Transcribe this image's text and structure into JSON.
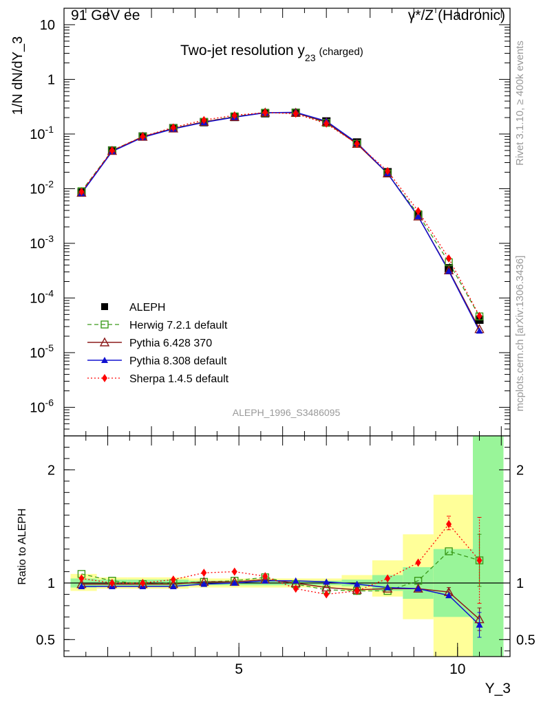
{
  "header": {
    "left": "91 GeV ee",
    "right": "γ*/Z (Hadronic)"
  },
  "side": {
    "top": "Rivet 3.1.10, ≥ 400k events",
    "bottom": "mcplots.cern.ch [arXiv:1306.3436]"
  },
  "colors": {
    "data": "#000000",
    "herwig": "#3a9a1a",
    "pythia6": "#8b1a1a",
    "pythia8": "#1010d0",
    "sherpa": "#ff0000",
    "band_inner": "#99f599",
    "band_outer": "#ffff99"
  },
  "chart_data": [
    {
      "type": "line",
      "title": "Two-jet resolution y",
      "title_sub": "23",
      "title_suffix": "(charged)",
      "ylabel": "1/N dN/dY_3",
      "yscale": "log",
      "ylim": [
        3e-07,
        20
      ],
      "xlim": [
        1,
        11.2
      ],
      "analysis": "ALEPH_1996_S3486095",
      "y_ticks": [
        {
          "base": "10",
          "exp": "-6",
          "value": 1e-06
        },
        {
          "base": "10",
          "exp": "-5",
          "value": 1e-05
        },
        {
          "base": "10",
          "exp": "-4",
          "value": 0.0001
        },
        {
          "base": "10",
          "exp": "-3",
          "value": 0.001
        },
        {
          "base": "10",
          "exp": "-2",
          "value": 0.01
        },
        {
          "base": "10",
          "exp": "-1",
          "value": 0.1
        },
        {
          "base": "1",
          "exp": "",
          "value": 1
        },
        {
          "base": "10",
          "exp": "",
          "value": 10
        }
      ],
      "x": [
        1.4,
        2.1,
        2.8,
        3.5,
        4.2,
        4.9,
        5.6,
        6.3,
        7.0,
        7.7,
        8.4,
        9.1,
        9.8,
        10.5
      ],
      "series": [
        {
          "name": "ALEPH",
          "key": "data",
          "values": [
            0.0085,
            0.05,
            0.09,
            0.128,
            0.165,
            0.205,
            0.24,
            0.245,
            0.17,
            0.07,
            0.02,
            0.0033,
            0.00035,
            4e-05
          ]
        },
        {
          "name": "Herwig 7.2.1 default",
          "key": "herwig",
          "values": [
            0.009,
            0.05,
            0.09,
            0.128,
            0.167,
            0.21,
            0.245,
            0.245,
            0.16,
            0.066,
            0.019,
            0.0034,
            0.00045,
            4.6e-05
          ]
        },
        {
          "name": "Pythia 6.428 370",
          "key": "pythia6",
          "values": [
            0.0084,
            0.049,
            0.089,
            0.126,
            0.167,
            0.205,
            0.247,
            0.245,
            0.165,
            0.066,
            0.019,
            0.0031,
            0.00032,
            2.7e-05
          ]
        },
        {
          "name": "Pythia 8.308 default",
          "key": "pythia8",
          "values": [
            0.0082,
            0.048,
            0.087,
            0.124,
            0.163,
            0.203,
            0.245,
            0.249,
            0.172,
            0.069,
            0.019,
            0.0031,
            0.00031,
            2.5e-05
          ]
        },
        {
          "name": "Sherpa 1.4.5 default",
          "key": "sherpa",
          "values": [
            0.0088,
            0.05,
            0.09,
            0.132,
            0.18,
            0.22,
            0.247,
            0.235,
            0.155,
            0.066,
            0.021,
            0.0039,
            0.00053,
            4.7e-05
          ]
        }
      ]
    },
    {
      "type": "line",
      "ylabel": "Ratio to ALEPH",
      "xlabel": "Y_3",
      "ylim": [
        0.35,
        2.3
      ],
      "xlim": [
        1,
        11.2
      ],
      "x_ticks": [
        {
          "label": "5",
          "value": 5
        },
        {
          "label": "10",
          "value": 10
        }
      ],
      "y_ticks": [
        {
          "label": "0.5",
          "value": 0.5
        },
        {
          "label": "1",
          "value": 1
        },
        {
          "label": "2",
          "value": 2
        }
      ],
      "bins": [
        [
          1.15,
          1.75
        ],
        [
          1.75,
          2.45
        ],
        [
          2.45,
          3.15
        ],
        [
          3.15,
          3.85
        ],
        [
          3.85,
          4.55
        ],
        [
          4.55,
          5.25
        ],
        [
          5.25,
          5.95
        ],
        [
          5.95,
          6.65
        ],
        [
          6.65,
          7.35
        ],
        [
          7.35,
          8.05
        ],
        [
          8.05,
          8.75
        ],
        [
          8.75,
          9.45
        ],
        [
          9.45,
          10.35
        ],
        [
          10.35,
          11.05
        ]
      ],
      "band_inner": [
        [
          0.96,
          1.04
        ],
        [
          0.97,
          1.03
        ],
        [
          0.97,
          1.03
        ],
        [
          0.97,
          1.03
        ],
        [
          0.98,
          1.02
        ],
        [
          0.98,
          1.02
        ],
        [
          0.98,
          1.02
        ],
        [
          0.98,
          1.02
        ],
        [
          0.98,
          1.02
        ],
        [
          0.97,
          1.03
        ],
        [
          0.93,
          1.07
        ],
        [
          0.86,
          1.14
        ],
        [
          0.7,
          1.3
        ],
        [
          0.35,
          2.3
        ]
      ],
      "band_outer": [
        [
          0.93,
          1.08
        ],
        [
          0.95,
          1.05
        ],
        [
          0.95,
          1.05
        ],
        [
          0.95,
          1.05
        ],
        [
          0.96,
          1.04
        ],
        [
          0.96,
          1.04
        ],
        [
          0.96,
          1.04
        ],
        [
          0.96,
          1.04
        ],
        [
          0.96,
          1.04
        ],
        [
          0.93,
          1.07
        ],
        [
          0.88,
          1.2
        ],
        [
          0.68,
          1.43
        ],
        [
          0.35,
          1.78
        ],
        [
          0.35,
          2.3
        ]
      ],
      "x": [
        1.4,
        2.1,
        2.8,
        3.5,
        4.2,
        4.9,
        5.6,
        6.3,
        7.0,
        7.7,
        8.4,
        9.1,
        9.8,
        10.5
      ],
      "series": [
        {
          "name": "Herwig 7.2.1 default",
          "key": "herwig",
          "values": [
            1.08,
            1.02,
            0.99,
            1.0,
            1.01,
            1.02,
            1.05,
            0.99,
            0.94,
            0.93,
            0.93,
            1.02,
            1.28,
            1.2
          ]
        },
        {
          "name": "Pythia 6.428 370",
          "key": "pythia6",
          "values": [
            0.99,
            0.99,
            0.99,
            0.99,
            1.01,
            1.01,
            1.03,
            1.0,
            0.96,
            0.94,
            0.95,
            0.95,
            0.92,
            0.68
          ]
        },
        {
          "name": "Pythia 8.308 default",
          "key": "pythia8",
          "values": [
            0.97,
            0.97,
            0.97,
            0.97,
            0.99,
            1.0,
            1.02,
            1.02,
            1.01,
            0.99,
            0.96,
            0.95,
            0.89,
            0.63
          ]
        },
        {
          "name": "Sherpa 1.4.5 default",
          "key": "sherpa",
          "values": [
            1.04,
            1.0,
            1.0,
            1.03,
            1.09,
            1.1,
            1.06,
            0.95,
            0.9,
            0.93,
            1.04,
            1.18,
            1.52,
            1.2
          ]
        }
      ],
      "error_bars": [
        {
          "key": "herwig",
          "index": 13,
          "low": 0.97,
          "high": 1.43
        },
        {
          "key": "sherpa",
          "index": 12,
          "low": 1.47,
          "high": 1.59
        },
        {
          "key": "sherpa",
          "index": 13,
          "low": 0.82,
          "high": 1.58
        },
        {
          "key": "pythia6",
          "index": 12,
          "low": 0.89,
          "high": 0.96
        },
        {
          "key": "pythia6",
          "index": 13,
          "low": 0.58,
          "high": 0.78
        },
        {
          "key": "pythia8",
          "index": 13,
          "low": 0.52,
          "high": 0.74
        }
      ]
    }
  ]
}
